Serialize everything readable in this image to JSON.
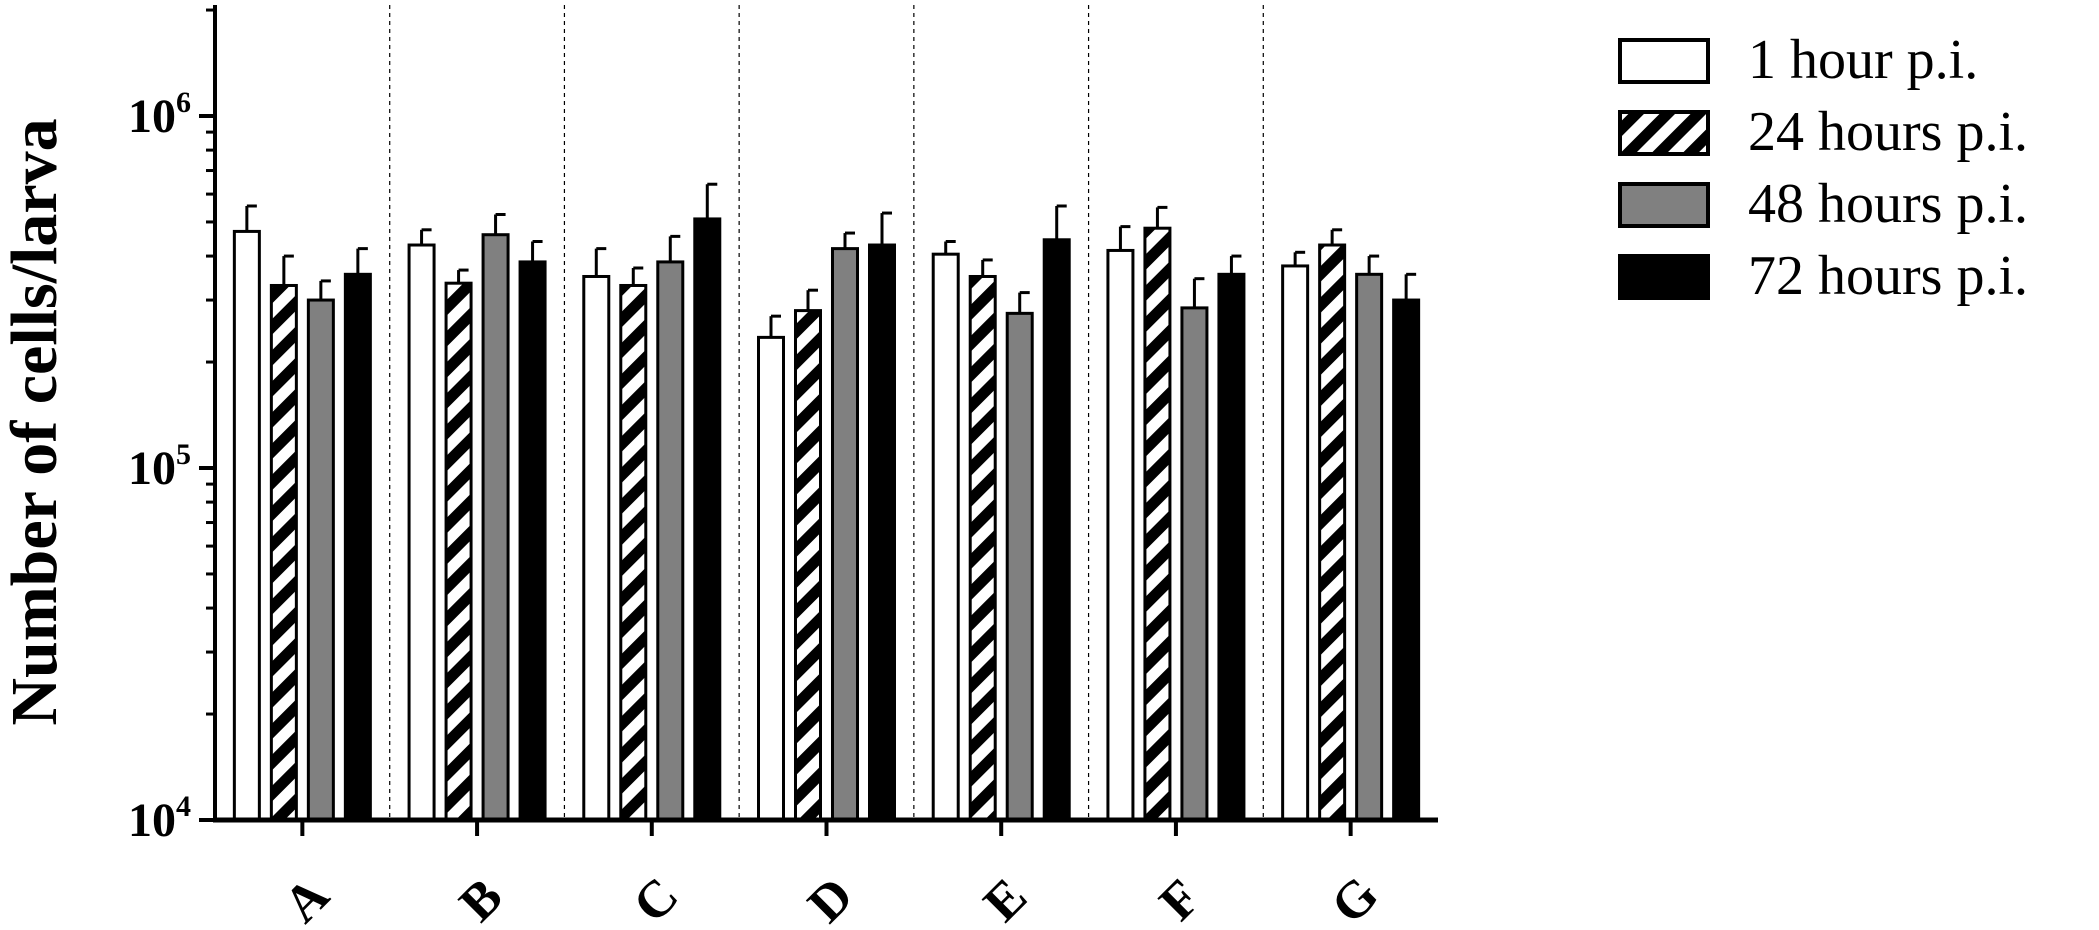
{
  "chart_data": {
    "type": "bar",
    "ylabel": "Number of cells/larva",
    "xlabel": "",
    "yscale": "log",
    "ylim": [
      10000,
      2000000
    ],
    "yticks": [
      {
        "value": 10000,
        "base": "10",
        "exp": "4"
      },
      {
        "value": 100000,
        "base": "10",
        "exp": "5"
      },
      {
        "value": 1000000,
        "base": "10",
        "exp": "6"
      }
    ],
    "categories": [
      "A",
      "B",
      "C",
      "D",
      "E",
      "F",
      "G"
    ],
    "legend_position": "top-right",
    "grid": false,
    "series": [
      {
        "name": "1 hour p.i.",
        "style": "white",
        "values": [
          470000,
          430000,
          350000,
          235000,
          405000,
          415000,
          375000
        ],
        "errors": [
          85000,
          45000,
          70000,
          35000,
          35000,
          70000,
          35000
        ]
      },
      {
        "name": "24 hours p.i.",
        "style": "hatched",
        "values": [
          330000,
          335000,
          330000,
          280000,
          350000,
          480000,
          430000
        ],
        "errors": [
          70000,
          30000,
          40000,
          40000,
          40000,
          70000,
          45000
        ]
      },
      {
        "name": "48 hours p.i.",
        "style": "gray",
        "values": [
          300000,
          460000,
          385000,
          420000,
          275000,
          285000,
          355000
        ],
        "errors": [
          40000,
          65000,
          70000,
          45000,
          40000,
          60000,
          45000
        ]
      },
      {
        "name": "72 hours p.i.",
        "style": "black",
        "values": [
          355000,
          385000,
          510000,
          430000,
          445000,
          355000,
          300000
        ],
        "errors": [
          65000,
          55000,
          130000,
          100000,
          110000,
          45000,
          55000
        ]
      }
    ]
  },
  "colors": {
    "white": "#ffffff",
    "gray": "#808080",
    "black": "#000000",
    "stroke": "#000000"
  }
}
